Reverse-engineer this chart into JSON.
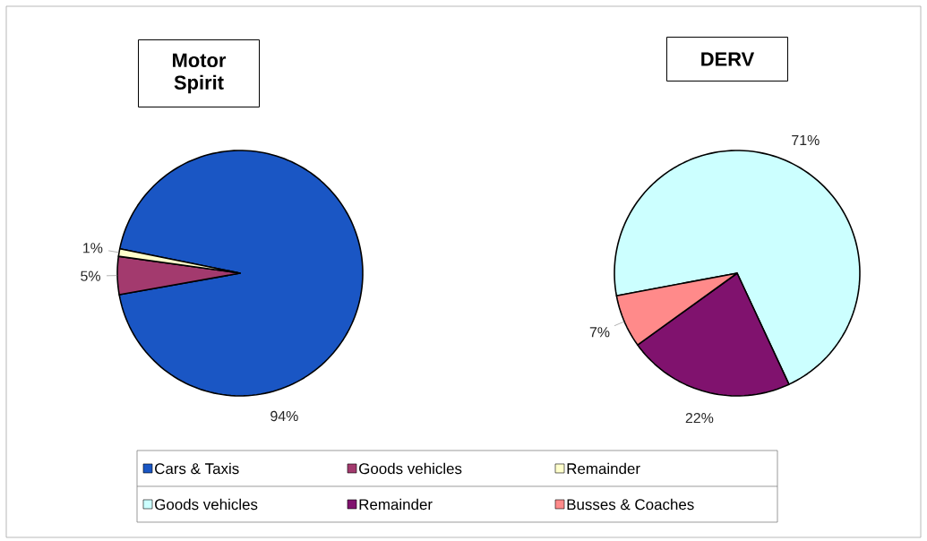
{
  "chart_data": [
    {
      "type": "pie",
      "title": "Motor Spirit",
      "categories": [
        "Cars & Taxis",
        "Goods vehicles",
        "Remainder"
      ],
      "values": [
        94,
        5,
        1
      ],
      "value_labels": [
        "94%",
        "5%",
        "1%"
      ],
      "colors": [
        "#1a56c4",
        "#a33a6e",
        "#ffffcc"
      ],
      "legend": "bottom"
    },
    {
      "type": "pie",
      "title": "DERV",
      "categories": [
        "Goods vehicles",
        "Remainder",
        "Busses & Coaches"
      ],
      "values": [
        71,
        22,
        7
      ],
      "value_labels": [
        "71%",
        "22%",
        "7%"
      ],
      "colors": [
        "#ccffff",
        "#80126e",
        "#ff8a8a"
      ],
      "legend": "bottom"
    }
  ]
}
